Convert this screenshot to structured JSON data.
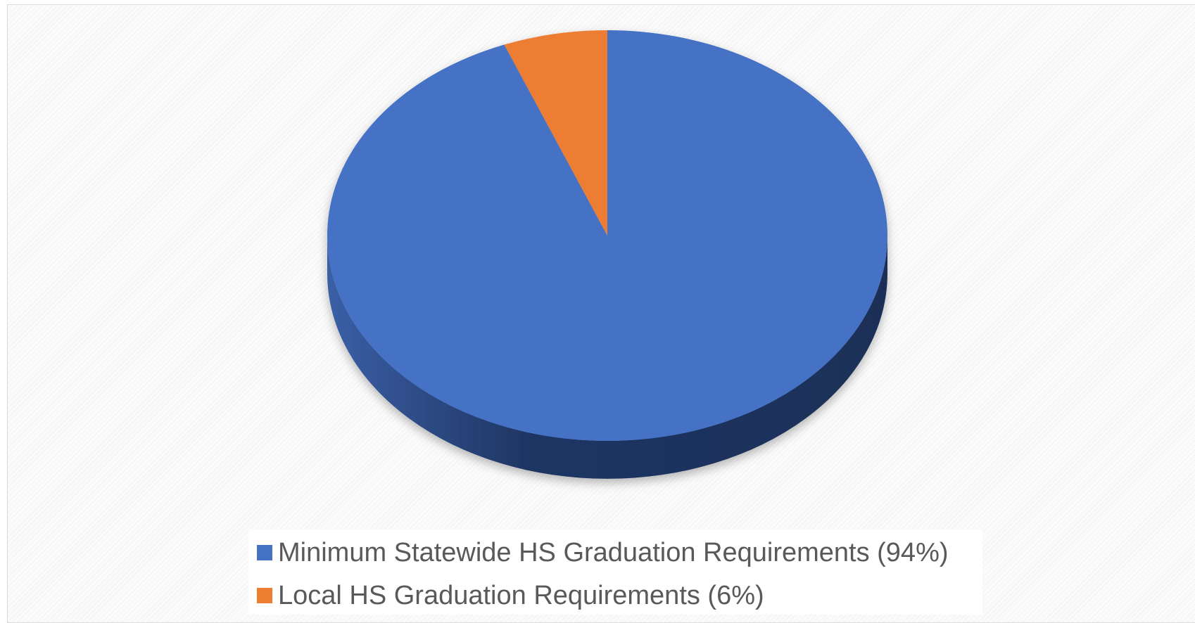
{
  "chart_data": {
    "type": "pie",
    "title": "",
    "categories": [
      "Minimum Statewide HS Graduation Requirements (94%)",
      "Local HS Graduation Requirements (6%)"
    ],
    "values": [
      94,
      6
    ],
    "colors": [
      "#4472C4",
      "#ED7D31"
    ],
    "side_color": "#1E3360",
    "three_d": true,
    "legend_position": "bottom",
    "legend": [
      {
        "label": "Minimum Statewide HS Graduation Requirements (94%)",
        "color": "#4472C4"
      },
      {
        "label": "Local HS Graduation Requirements (6%)",
        "color": "#ED7D31"
      }
    ]
  }
}
